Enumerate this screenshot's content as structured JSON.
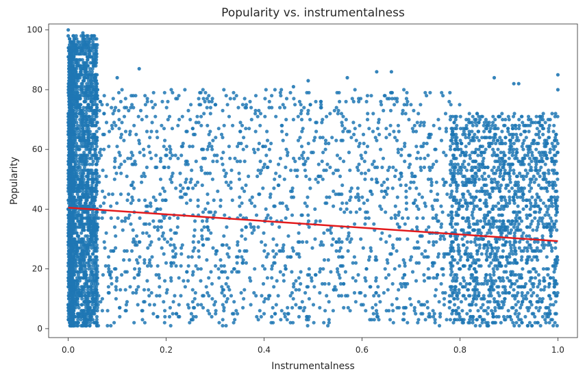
{
  "chart_data": {
    "type": "scatter",
    "title": "Popularity vs. instrumentalness",
    "xlabel": "Instrumentalness",
    "ylabel": "Popularity",
    "xlim": [
      -0.04,
      1.04
    ],
    "ylim": [
      -3,
      102
    ],
    "xticks": [
      0.0,
      0.2,
      0.4,
      0.6,
      0.8,
      1.0
    ],
    "xtick_labels": [
      "0.0",
      "0.2",
      "0.4",
      "0.6",
      "0.8",
      "1.0"
    ],
    "yticks": [
      0,
      20,
      40,
      60,
      80,
      100
    ],
    "ytick_labels": [
      "0",
      "20",
      "40",
      "60",
      "80",
      "100"
    ],
    "grid": false,
    "colors": {
      "points": "#1f77b4",
      "regression": "#e31a1c",
      "axes": "#262626"
    },
    "regression_line": {
      "x": [
        0.0,
        1.0
      ],
      "y": [
        40.5,
        29.3
      ]
    },
    "notable_points": [
      {
        "x": 0.0,
        "y": 100
      },
      {
        "x": 0.0,
        "y": 98
      },
      {
        "x": 0.005,
        "y": 96
      },
      {
        "x": 0.03,
        "y": 99
      },
      {
        "x": 0.015,
        "y": 93
      },
      {
        "x": 0.02,
        "y": 92
      },
      {
        "x": 0.145,
        "y": 87
      },
      {
        "x": 0.63,
        "y": 86
      },
      {
        "x": 0.66,
        "y": 86
      },
      {
        "x": 0.57,
        "y": 84
      },
      {
        "x": 0.87,
        "y": 84
      },
      {
        "x": 1.0,
        "y": 85
      },
      {
        "x": 0.91,
        "y": 82
      },
      {
        "x": 0.92,
        "y": 82
      },
      {
        "x": 1.0,
        "y": 80
      },
      {
        "x": 0.1,
        "y": 84
      },
      {
        "x": 0.46,
        "y": 81
      },
      {
        "x": 0.49,
        "y": 83
      }
    ],
    "density_regions": [
      {
        "x_range": [
          0.0,
          0.06
        ],
        "y_range": [
          1,
          98
        ],
        "weight": 0.35
      },
      {
        "x_range": [
          0.0,
          0.8
        ],
        "y_range": [
          1,
          80
        ],
        "weight": 0.35
      },
      {
        "x_range": [
          0.78,
          1.0
        ],
        "y_range": [
          1,
          72
        ],
        "weight": 0.3
      }
    ]
  }
}
